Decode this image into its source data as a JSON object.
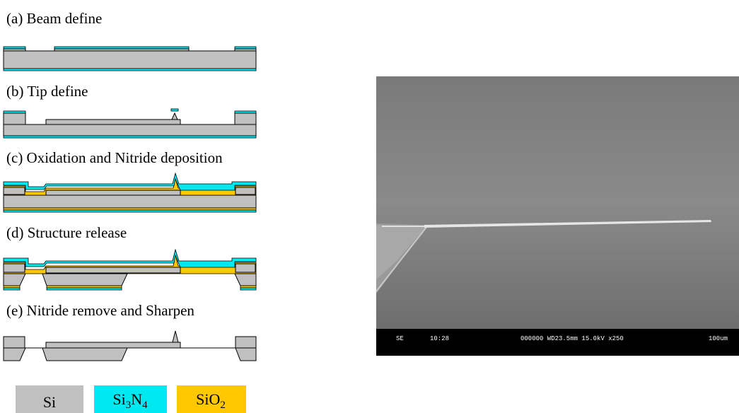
{
  "steps": [
    {
      "label": "(a) Beam define"
    },
    {
      "label": "(b) Tip define"
    },
    {
      "label": "(c) Oxidation and Nitride deposition"
    },
    {
      "label": "(d) Structure release"
    },
    {
      "label": "(e) Nitride remove and Sharpen"
    }
  ],
  "legend": [
    {
      "label": [
        "Si"
      ],
      "color": "#c0c0c0"
    },
    {
      "label": [
        "Si",
        "3",
        "N",
        "4"
      ],
      "color": "#00e8f0"
    },
    {
      "label": [
        "SiO",
        "2"
      ],
      "color": "#ffc800"
    }
  ],
  "sem_bar": {
    "mode": "SE",
    "time": "10:28",
    "info": "000000 WD23.5mm 15.0kV x250",
    "scale": "100um"
  }
}
